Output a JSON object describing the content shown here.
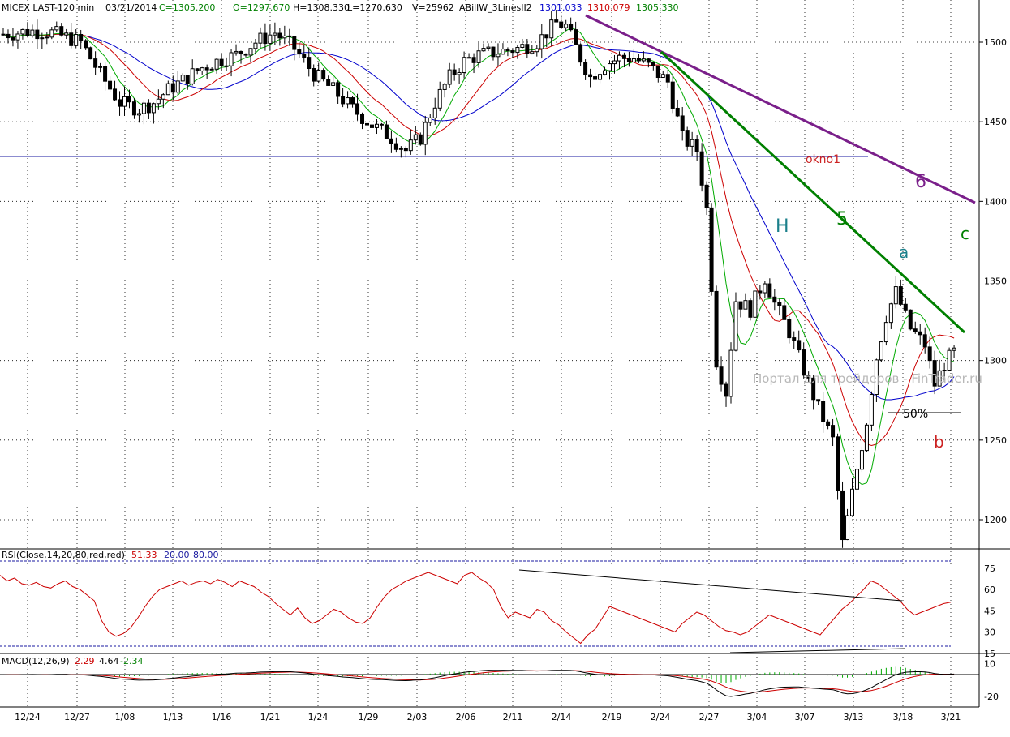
{
  "header": {
    "symbol": "MICEX LAST-120 min",
    "date": "03/21/2014",
    "close_text": "C=1305.200",
    "open_text": "O=1297.670",
    "high_text": "H=1308.330",
    "low_text": "L=1270.630",
    "volume_text": "V=25962",
    "indicator": "ABillW_3LinesII2",
    "line1": "1301.033",
    "line2": "1310.079",
    "line3": "1305.330"
  },
  "rsi_header": {
    "label": "RSI(Close,14,20,80,red,red)",
    "v1": "51.33",
    "v2": "20.00",
    "v3": "80.00"
  },
  "macd_header": {
    "label": "MACD(12,26,9)",
    "v1": "2.29",
    "v2": "4.64",
    "v3": "-2.34"
  },
  "watermark": "Портал для трейдеров - FinTrader.ru",
  "annotations": {
    "okno": "okno1",
    "h": "H",
    "five": "5",
    "six": "6",
    "a": "a",
    "b": "b",
    "c": "c",
    "fifty": "50%"
  },
  "colors": {
    "candles": "#000000",
    "blue_ma": "#0000cc",
    "red_ma": "#cc0000",
    "green_ma": "#00aa00",
    "trend5": "#008000",
    "trend6": "#7a1f8a",
    "rsi": "#cc0000",
    "macd": "#000000",
    "signal": "#cc0000",
    "hist": "#00aa00",
    "grid": "#000000"
  },
  "chart_data": [
    {
      "type": "candlestick",
      "title": "MICEX LAST-120 min",
      "ylim": [
        1177,
        1525
      ],
      "yticks": [
        1200,
        1250,
        1300,
        1350,
        1400,
        1450,
        1500
      ],
      "x_labels": [
        "12/24",
        "12/27",
        "1/08",
        "1/13",
        "1/16",
        "1/21",
        "1/24",
        "1/29",
        "2/03",
        "2/06",
        "2/11",
        "2/14",
        "2/19",
        "2/24",
        "2/27",
        "3/04",
        "3/07",
        "3/13",
        "3/18",
        "3/21"
      ],
      "price_path": [
        [
          0,
          1505
        ],
        [
          6,
          1507
        ],
        [
          10,
          1506
        ],
        [
          14,
          1502
        ],
        [
          16,
          1500
        ],
        [
          20,
          1480
        ],
        [
          24,
          1462
        ],
        [
          28,
          1458
        ],
        [
          31,
          1462
        ],
        [
          34,
          1470
        ],
        [
          38,
          1478
        ],
        [
          41,
          1484
        ],
        [
          44,
          1488
        ],
        [
          48,
          1492
        ],
        [
          52,
          1500
        ],
        [
          56,
          1506
        ],
        [
          60,
          1496
        ],
        [
          64,
          1480
        ],
        [
          68,
          1470
        ],
        [
          72,
          1458
        ],
        [
          76,
          1448
        ],
        [
          80,
          1440
        ],
        [
          83,
          1432
        ],
        [
          86,
          1440
        ],
        [
          89,
          1462
        ],
        [
          92,
          1478
        ],
        [
          95,
          1488
        ],
        [
          98,
          1492
        ],
        [
          102,
          1494
        ],
        [
          106,
          1496
        ],
        [
          110,
          1500
        ],
        [
          114,
          1512
        ],
        [
          116,
          1510
        ],
        [
          119,
          1490
        ],
        [
          121,
          1478
        ],
        [
          124,
          1486
        ],
        [
          127,
          1490
        ],
        [
          130,
          1490
        ],
        [
          133,
          1485
        ],
        [
          137,
          1475
        ],
        [
          140,
          1440
        ],
        [
          143,
          1432
        ],
        [
          145,
          1395
        ],
        [
          147,
          1300
        ],
        [
          149,
          1280
        ],
        [
          151,
          1338
        ],
        [
          154,
          1332
        ],
        [
          157,
          1352
        ],
        [
          159,
          1336
        ],
        [
          162,
          1318
        ],
        [
          165,
          1294
        ],
        [
          168,
          1270
        ],
        [
          171,
          1250
        ],
        [
          173,
          1185
        ],
        [
          176,
          1232
        ],
        [
          178,
          1262
        ],
        [
          180,
          1302
        ],
        [
          182,
          1328
        ],
        [
          184,
          1343
        ],
        [
          187,
          1320
        ],
        [
          190,
          1310
        ],
        [
          192,
          1285
        ],
        [
          194,
          1298
        ],
        [
          196,
          1305
        ]
      ],
      "close": 1305.2,
      "open": 1297.67,
      "high": 1308.33,
      "low": 1270.63,
      "volume": 25962,
      "annotations": [
        "okno1",
        "H",
        "5",
        "6",
        "a",
        "b",
        "c",
        "50%"
      ]
    },
    {
      "type": "line",
      "title": "RSI(Close,14,20,80,red,red)",
      "ylim": [
        10,
        88
      ],
      "yticks": [
        15,
        30,
        45,
        60,
        75
      ],
      "levels": [
        20,
        80
      ],
      "last": 51.33,
      "values": [
        70,
        66,
        68,
        64,
        63,
        65,
        62,
        61,
        64,
        66,
        62,
        60,
        56,
        52,
        38,
        30,
        27,
        29,
        33,
        40,
        48,
        55,
        60,
        62,
        64,
        66,
        63,
        65,
        66,
        64,
        67,
        65,
        62,
        66,
        64,
        62,
        58,
        55,
        50,
        46,
        42,
        47,
        40,
        36,
        38,
        42,
        46,
        44,
        40,
        37,
        36,
        40,
        48,
        55,
        60,
        63,
        66,
        68,
        70,
        72,
        70,
        68,
        66,
        64,
        70,
        72,
        68,
        65,
        60,
        48,
        40,
        44,
        42,
        40,
        46,
        44,
        38,
        35,
        30,
        26,
        22,
        28,
        32,
        40,
        48,
        46,
        44,
        42,
        40,
        38,
        36,
        34,
        32,
        30,
        36,
        40,
        44,
        42,
        38,
        34,
        31,
        30,
        28,
        30,
        34,
        38,
        42,
        40,
        38,
        36,
        34,
        32,
        30,
        28,
        34,
        40,
        46,
        50,
        55,
        60,
        66,
        64,
        60,
        56,
        52,
        46,
        42,
        44,
        46,
        48,
        50,
        51
      ]
    },
    {
      "type": "line",
      "title": "MACD(12,26,9)",
      "ylim": [
        -27,
        17
      ],
      "yticks": [
        -20,
        10
      ],
      "last": {
        "macd": 2.29,
        "signal": 4.64,
        "hist": -2.34
      }
    }
  ]
}
